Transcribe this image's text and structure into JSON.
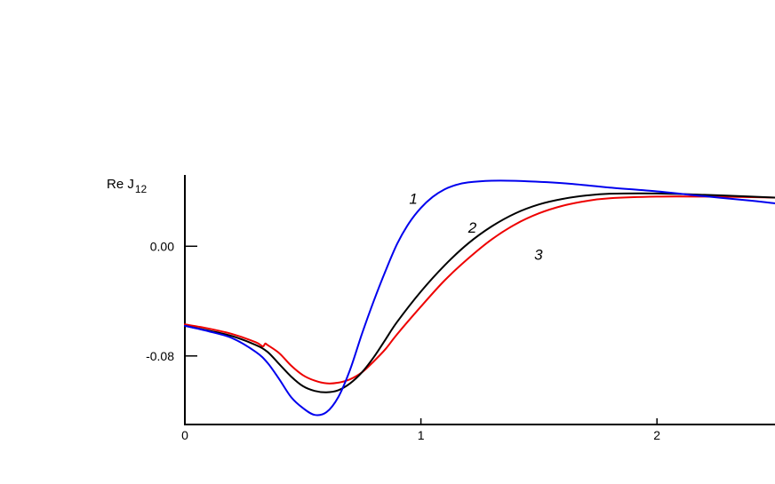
{
  "chart_data": {
    "type": "line",
    "title": "",
    "xlabel": "",
    "ylabel": "Re J",
    "ylabel_sub": "12",
    "xlim": [
      0,
      2.5
    ],
    "ylim": [
      -0.13,
      0.052
    ],
    "x_ticks": [
      {
        "value": 0,
        "label": "0"
      },
      {
        "value": 1,
        "label": "1"
      },
      {
        "value": 2,
        "label": "2"
      }
    ],
    "y_ticks": [
      {
        "value": 0.0,
        "label": "0.00"
      },
      {
        "value": -0.08,
        "label": "-0.08"
      }
    ],
    "grid": false,
    "legend": "none",
    "series": [
      {
        "name": "1",
        "color": "#0000ee",
        "label_at": [
          0.95,
          0.031
        ],
        "points": [
          [
            0.0,
            -0.058
          ],
          [
            0.1,
            -0.062
          ],
          [
            0.2,
            -0.067
          ],
          [
            0.3,
            -0.077
          ],
          [
            0.35,
            -0.085
          ],
          [
            0.4,
            -0.097
          ],
          [
            0.45,
            -0.11
          ],
          [
            0.5,
            -0.118
          ],
          [
            0.55,
            -0.123
          ],
          [
            0.6,
            -0.121
          ],
          [
            0.65,
            -0.11
          ],
          [
            0.7,
            -0.09
          ],
          [
            0.75,
            -0.064
          ],
          [
            0.8,
            -0.04
          ],
          [
            0.85,
            -0.018
          ],
          [
            0.9,
            0.002
          ],
          [
            0.95,
            0.017
          ],
          [
            1.0,
            0.028
          ],
          [
            1.05,
            0.036
          ],
          [
            1.1,
            0.0415
          ],
          [
            1.15,
            0.0448
          ],
          [
            1.2,
            0.0466
          ],
          [
            1.3,
            0.0478
          ],
          [
            1.4,
            0.0477
          ],
          [
            1.6,
            0.046
          ],
          [
            1.8,
            0.0428
          ],
          [
            2.0,
            0.04
          ],
          [
            2.2,
            0.0365
          ],
          [
            2.4,
            0.0332
          ],
          [
            2.5,
            0.0313
          ]
        ]
      },
      {
        "name": "2",
        "color": "#000000",
        "label_at": [
          1.2,
          0.01
        ],
        "points": [
          [
            0.0,
            -0.058
          ],
          [
            0.1,
            -0.0615
          ],
          [
            0.2,
            -0.0655
          ],
          [
            0.3,
            -0.072
          ],
          [
            0.35,
            -0.077
          ],
          [
            0.4,
            -0.086
          ],
          [
            0.45,
            -0.095
          ],
          [
            0.5,
            -0.102
          ],
          [
            0.55,
            -0.1055
          ],
          [
            0.6,
            -0.1065
          ],
          [
            0.65,
            -0.105
          ],
          [
            0.7,
            -0.1
          ],
          [
            0.75,
            -0.092
          ],
          [
            0.8,
            -0.081
          ],
          [
            0.85,
            -0.068
          ],
          [
            0.9,
            -0.055
          ],
          [
            1.0,
            -0.033
          ],
          [
            1.1,
            -0.014
          ],
          [
            1.2,
            0.002
          ],
          [
            1.3,
            0.0145
          ],
          [
            1.4,
            0.024
          ],
          [
            1.5,
            0.0305
          ],
          [
            1.6,
            0.0345
          ],
          [
            1.7,
            0.037
          ],
          [
            1.8,
            0.0383
          ],
          [
            2.0,
            0.0385
          ],
          [
            2.2,
            0.0375
          ],
          [
            2.4,
            0.0362
          ],
          [
            2.5,
            0.0355
          ]
        ]
      },
      {
        "name": "3",
        "color": "#ee0000",
        "label_at": [
          1.48,
          -0.01
        ],
        "points": [
          [
            0.0,
            -0.057
          ],
          [
            0.1,
            -0.06
          ],
          [
            0.2,
            -0.064
          ],
          [
            0.3,
            -0.07
          ],
          [
            0.33,
            -0.073
          ],
          [
            0.34,
            -0.071
          ],
          [
            0.35,
            -0.072
          ],
          [
            0.4,
            -0.078
          ],
          [
            0.45,
            -0.087
          ],
          [
            0.5,
            -0.094
          ],
          [
            0.55,
            -0.098
          ],
          [
            0.6,
            -0.1
          ],
          [
            0.65,
            -0.0995
          ],
          [
            0.7,
            -0.097
          ],
          [
            0.75,
            -0.092
          ],
          [
            0.8,
            -0.084
          ],
          [
            0.85,
            -0.075
          ],
          [
            0.9,
            -0.064
          ],
          [
            1.0,
            -0.044
          ],
          [
            1.1,
            -0.025
          ],
          [
            1.2,
            -0.009
          ],
          [
            1.3,
            0.005
          ],
          [
            1.4,
            0.016
          ],
          [
            1.5,
            0.024
          ],
          [
            1.6,
            0.0295
          ],
          [
            1.7,
            0.033
          ],
          [
            1.8,
            0.035
          ],
          [
            2.0,
            0.0362
          ],
          [
            2.2,
            0.0362
          ],
          [
            2.4,
            0.0358
          ],
          [
            2.5,
            0.0355
          ]
        ]
      }
    ]
  }
}
